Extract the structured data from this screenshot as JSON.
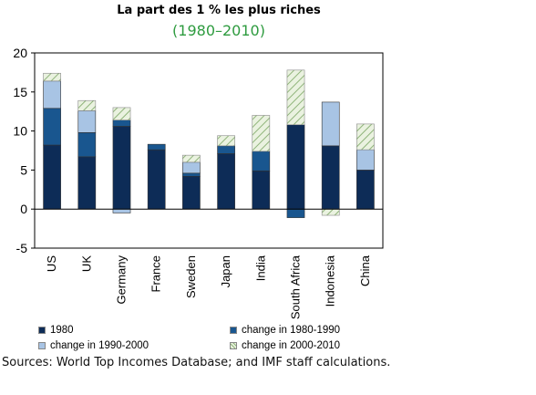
{
  "chart_data": {
    "type": "bar",
    "stacked": true,
    "title": "La part des 1 % les plus riches",
    "subtitle": "(1980–2010)",
    "categories": [
      "US",
      "UK",
      "Germany",
      "France",
      "Sweden",
      "Japan",
      "India",
      "South Africa",
      "Indonesia",
      "China"
    ],
    "series": [
      {
        "name": "1980",
        "values": [
          8.2,
          6.7,
          10.6,
          7.6,
          4.2,
          7.1,
          4.9,
          10.8,
          8.1,
          5.0
        ],
        "color": "#0d2c57"
      },
      {
        "name": "change in 1980-1990",
        "values": [
          4.7,
          3.1,
          0.8,
          0.7,
          0.4,
          1.0,
          2.5,
          -1.1,
          0,
          0
        ],
        "color": "#19568f"
      },
      {
        "name": "change in 1990-2000",
        "values": [
          3.5,
          2.8,
          -0.5,
          0,
          1.4,
          0,
          0,
          0,
          5.6,
          2.6
        ],
        "color": "#a8c4e4"
      },
      {
        "name": "change in 2000-2010",
        "values": [
          1.0,
          1.3,
          1.6,
          0,
          0.9,
          1.3,
          4.6,
          7.0,
          -0.8,
          3.3
        ],
        "color": "#e6efd9"
      }
    ],
    "ylim": [
      -5,
      20
    ],
    "yticks": [
      -5,
      0,
      5,
      10,
      15,
      20
    ],
    "grid": false,
    "legend_position": "bottom"
  },
  "legend_items": [
    {
      "label": "1980",
      "color": "#0d2c57",
      "hatch": false
    },
    {
      "label": "change in 1980-1990",
      "color": "#19568f",
      "hatch": false
    },
    {
      "label": "change in 1990-2000",
      "color": "#a8c4e4",
      "hatch": false
    },
    {
      "label": "change in 2000-2010",
      "color": "#e6efd9",
      "hatch": true
    }
  ],
  "subtitle_color": "#2e9b3f",
  "source_note": "Sources: World Top Incomes Database; and IMF staff calculations."
}
